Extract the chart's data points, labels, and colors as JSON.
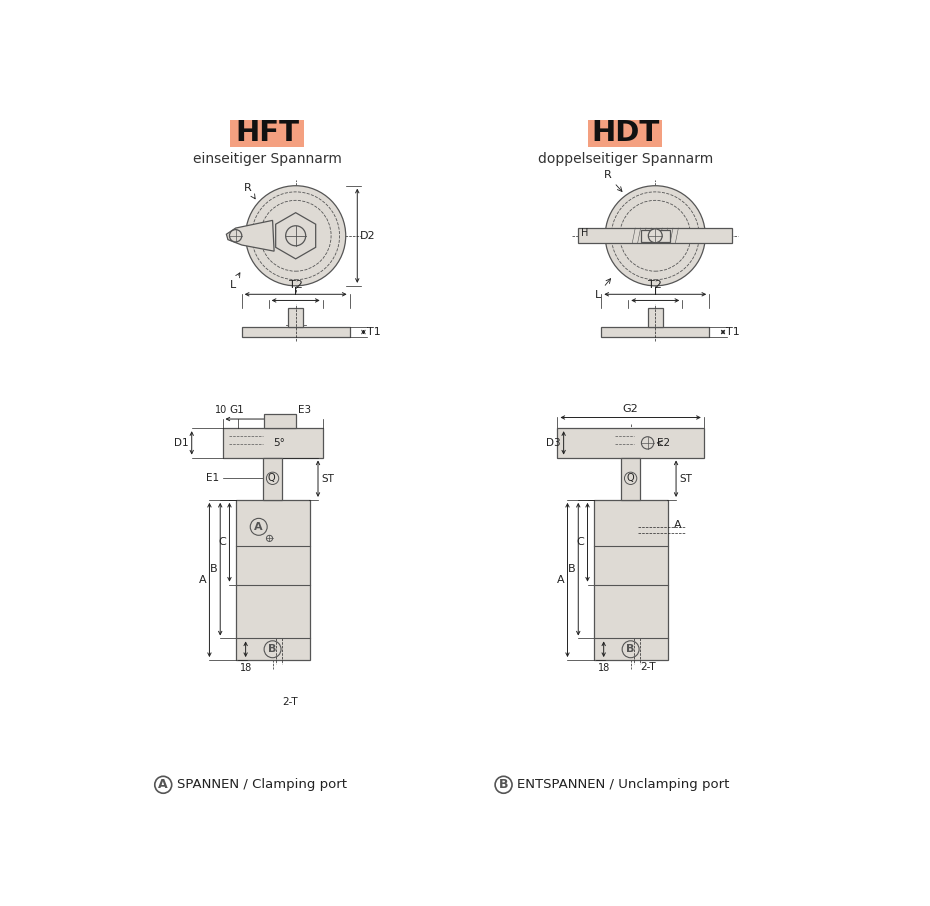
{
  "bg_color": "#ffffff",
  "title_hft": "HFT",
  "title_hdt": "HDT",
  "subtitle_hft": "einseitiger Spannarm",
  "subtitle_hdt": "doppelseitiger Spannarm",
  "title_bg_color": "#f4a080",
  "title_text_color": "#111111",
  "dim_color": "#222222",
  "body_fill": "#dedad4",
  "body_stroke": "#555555",
  "footer_a": "SPANNEN / Clamping port",
  "footer_b": "ENTSPANNEN / Unclamping port"
}
